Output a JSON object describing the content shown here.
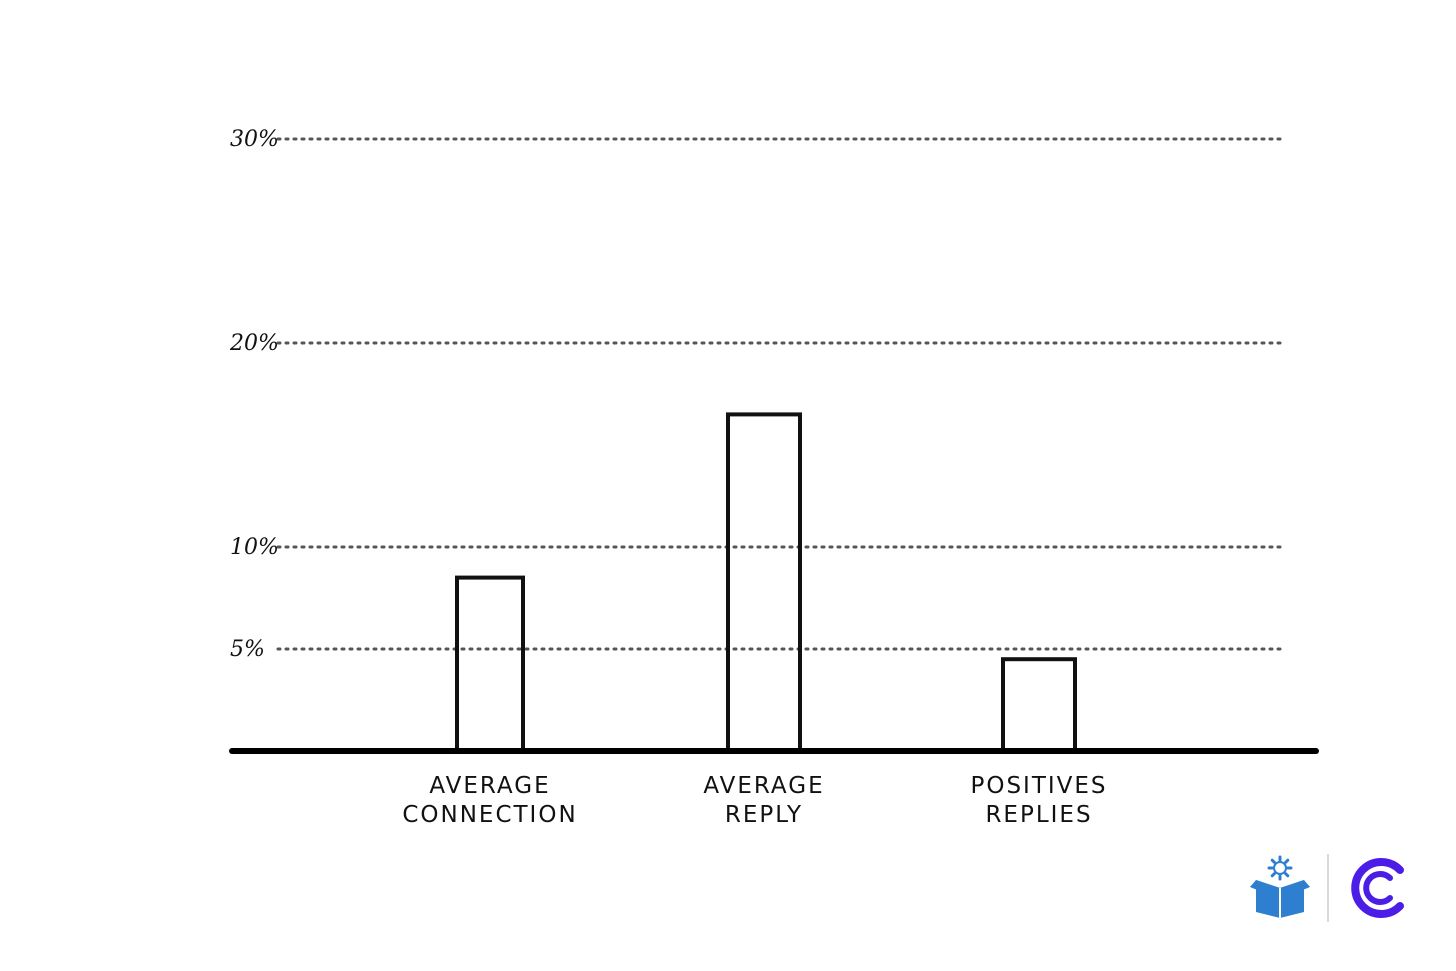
{
  "chart_data": {
    "type": "bar",
    "categories": [
      [
        "AVERAGE",
        "CONNECTION"
      ],
      [
        "AVERAGE",
        "REPLY"
      ],
      [
        "POSITIVES",
        "REPLIES"
      ]
    ],
    "values": [
      8.5,
      16.5,
      4.5
    ],
    "ylim": [
      0,
      30
    ],
    "y_ticks": [
      {
        "value": 5,
        "label": "5%"
      },
      {
        "value": 10,
        "label": "10%"
      },
      {
        "value": 20,
        "label": "20%"
      },
      {
        "value": 30,
        "label": "30%"
      }
    ],
    "grid": true,
    "title": "",
    "xlabel": "",
    "ylabel": ""
  },
  "logos": {
    "box_icon_color": "#2f7fd1",
    "c_logo_color": "#4b1de6"
  }
}
